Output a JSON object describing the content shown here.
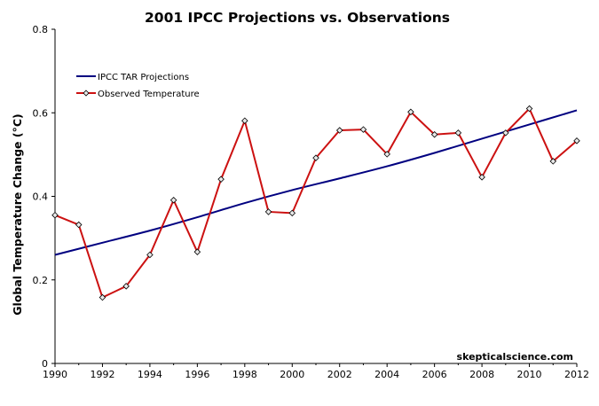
{
  "chart_data": {
    "type": "line",
    "title": "2001 IPCC Projections vs. Observations",
    "xlabel": "",
    "ylabel": "Global Temperature Change (°C)",
    "xlim": [
      1990,
      2012
    ],
    "ylim": [
      0,
      0.8
    ],
    "x_ticks": [
      1990,
      1992,
      1994,
      1996,
      1998,
      2000,
      2002,
      2004,
      2006,
      2008,
      2010,
      2012
    ],
    "y_ticks": [
      0,
      0.2,
      0.4,
      0.6,
      0.8
    ],
    "y_tick_labels": [
      "0",
      "0.2",
      "0.4",
      "0.6",
      "0.8"
    ],
    "grid": false,
    "legend_position": "top-left",
    "series": [
      {
        "name": "IPCC TAR Projections",
        "color": "#000080",
        "marker": "none",
        "x": [
          1990,
          1992,
          1994,
          1996,
          1998,
          2000,
          2002,
          2004,
          2006,
          2008,
          2010,
          2012
        ],
        "values": [
          0.26,
          0.289,
          0.318,
          0.35,
          0.384,
          0.415,
          0.443,
          0.472,
          0.504,
          0.538,
          0.572,
          0.606
        ]
      },
      {
        "name": "Observed Temperature",
        "color": "#cc1111",
        "marker": "diamond",
        "x": [
          1990,
          1991,
          1992,
          1993,
          1994,
          1995,
          1996,
          1997,
          1998,
          1999,
          2000,
          2001,
          2002,
          2003,
          2004,
          2005,
          2006,
          2007,
          2008,
          2009,
          2010,
          2011,
          2012
        ],
        "values": [
          0.355,
          0.332,
          0.158,
          0.185,
          0.26,
          0.391,
          0.267,
          0.441,
          0.581,
          0.363,
          0.36,
          0.492,
          0.558,
          0.56,
          0.501,
          0.602,
          0.548,
          0.552,
          0.446,
          0.552,
          0.61,
          0.484,
          0.533
        ]
      }
    ],
    "annotation": "skepticalscience.com"
  }
}
